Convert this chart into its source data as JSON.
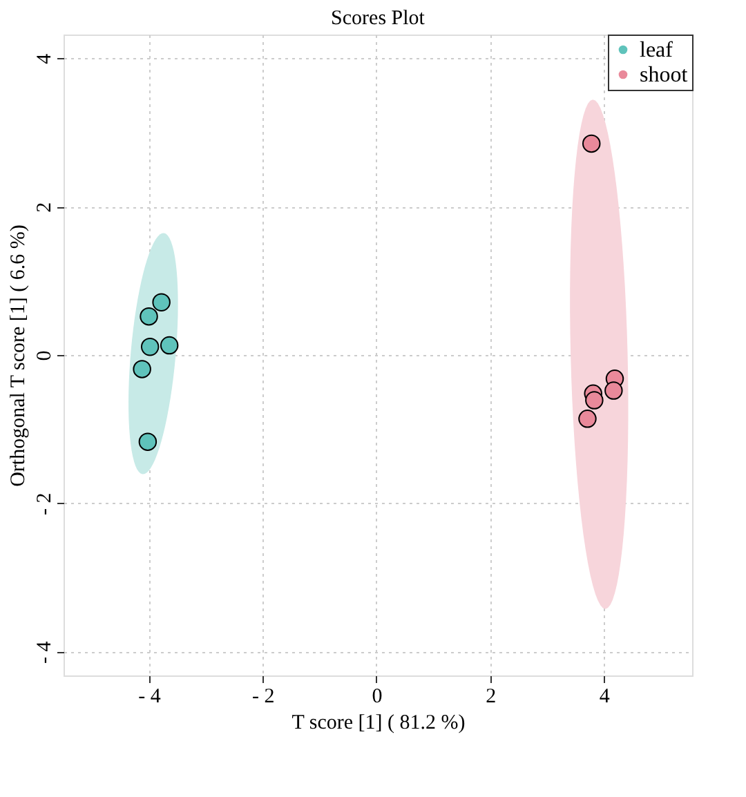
{
  "chart_data": {
    "type": "scatter",
    "title": "Scores Plot",
    "xlabel": "T score [1] ( 81.2 %)",
    "ylabel": "Orthogonal T score [1] ( 6.6 %)",
    "xlim": [
      -5.5,
      5.55
    ],
    "ylim": [
      -4.32,
      4.32
    ],
    "xticks": [
      {
        "value": -4,
        "label": "- 4"
      },
      {
        "value": -2,
        "label": "- 2"
      },
      0,
      2,
      4
    ],
    "yticks": [
      {
        "value": -4,
        "label": "- 4"
      },
      {
        "value": -2,
        "label": "- 2"
      },
      0,
      2,
      4
    ],
    "grid": true,
    "legend": "top right",
    "marker": "circle",
    "series": [
      {
        "name": "leaf",
        "color": "#5fc3bb",
        "x": [
          -4.0,
          -3.78,
          -3.98,
          -3.64,
          -4.12,
          -4.02
        ],
        "values": [
          0.52,
          0.71,
          0.11,
          0.13,
          -0.19,
          -1.17
        ]
      },
      {
        "name": "shoot",
        "color": "#e9899a",
        "x": [
          3.78,
          3.81,
          3.83,
          4.19,
          4.17,
          3.71
        ],
        "values": [
          2.85,
          -0.52,
          -0.61,
          -0.32,
          -0.48,
          -0.86
        ]
      }
    ]
  }
}
